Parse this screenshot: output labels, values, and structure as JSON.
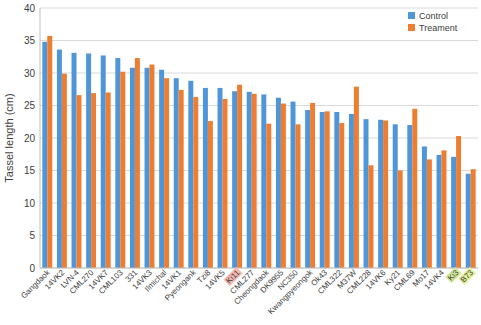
{
  "chart_data": {
    "type": "bar",
    "y_label": "Tassel length (cm)",
    "categories": [
      "Gangdaok",
      "14VK2",
      "LVN-4",
      "CML270",
      "14VK7",
      "CML103",
      "331",
      "14VK3",
      "Ilmichal",
      "14VK1",
      "Pyeongank",
      "Tzi8",
      "14VK5",
      "Ki11",
      "CML277",
      "Cheongdaok",
      "DK9955",
      "NC350",
      "Kwangpyeongok",
      "Ok43",
      "CML322",
      "M37W",
      "CML228",
      "14VK6",
      "Ky21",
      "CML69",
      "Mo17",
      "14VK4",
      "Ki3",
      "B73"
    ],
    "series": [
      {
        "name": "Control",
        "color": "#4f95da",
        "values": [
          34.8,
          33.6,
          33.1,
          33.0,
          32.7,
          32.3,
          30.8,
          30.8,
          30.5,
          29.2,
          28.8,
          27.7,
          27.7,
          27.2,
          27.1,
          26.7,
          26.2,
          25.6,
          24.3,
          24.0,
          24.0,
          23.7,
          22.9,
          22.8,
          22.1,
          22.0,
          18.7,
          17.4,
          17.1,
          14.5
        ]
      },
      {
        "name": "Treament",
        "color": "#ed7d31",
        "values": [
          35.7,
          29.9,
          26.6,
          26.9,
          27.0,
          30.2,
          32.3,
          31.3,
          29.2,
          27.4,
          26.3,
          22.6,
          26.0,
          28.2,
          26.8,
          22.2,
          25.3,
          22.1,
          25.4,
          24.1,
          22.3,
          27.9,
          15.8,
          22.7,
          15.0,
          24.5,
          16.7,
          18.1,
          20.3,
          15.2
        ]
      }
    ],
    "ylim": [
      0,
      40
    ],
    "yticks": [
      0,
      5,
      10,
      15,
      20,
      25,
      30,
      35,
      40
    ],
    "grid": true,
    "legend": "top-right"
  }
}
